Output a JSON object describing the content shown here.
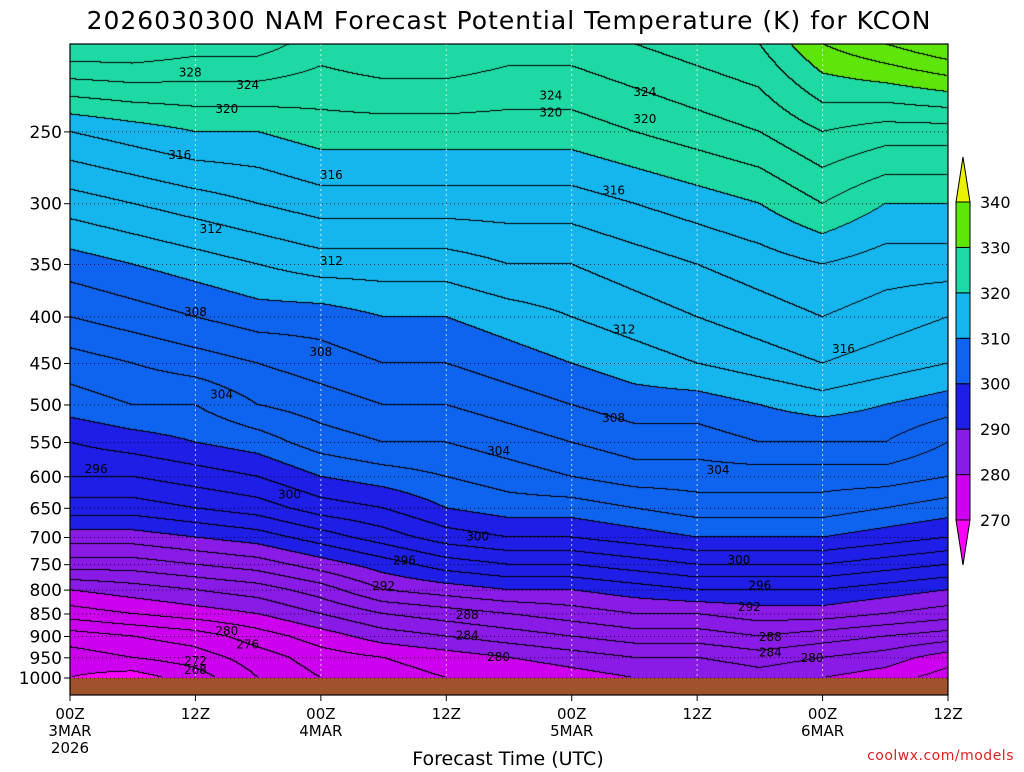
{
  "chart_data": {
    "type": "heatmap",
    "title": "2026030300 NAM Forecast Potential Temperature (K) for KCON",
    "xlabel": "Forecast Time (UTC)",
    "ylabel": "",
    "watermark": "coolwx.com/models",
    "units": "K",
    "x_hours": [
      0,
      12,
      24,
      36,
      48,
      60,
      72,
      84
    ],
    "x_ticks": [
      {
        "hour": 0,
        "l1": "00Z",
        "l2": "3MAR",
        "l3": "2026"
      },
      {
        "hour": 12,
        "l1": "12Z",
        "l2": "",
        "l3": ""
      },
      {
        "hour": 24,
        "l1": "00Z",
        "l2": "4MAR",
        "l3": ""
      },
      {
        "hour": 36,
        "l1": "12Z",
        "l2": "",
        "l3": ""
      },
      {
        "hour": 48,
        "l1": "00Z",
        "l2": "5MAR",
        "l3": ""
      },
      {
        "hour": 60,
        "l1": "12Z",
        "l2": "",
        "l3": ""
      },
      {
        "hour": 72,
        "l1": "00Z",
        "l2": "6MAR",
        "l3": ""
      },
      {
        "hour": 84,
        "l1": "12Z",
        "l2": "",
        "l3": ""
      }
    ],
    "xlim": [
      0,
      84
    ],
    "y_ticks": [
      250,
      300,
      350,
      400,
      450,
      500,
      550,
      600,
      650,
      700,
      750,
      800,
      850,
      900,
      950,
      1000
    ],
    "ylim": [
      200,
      1000
    ],
    "ground_pressure": 1000,
    "contour_interval": 2,
    "color_levels": [
      270,
      280,
      290,
      300,
      310,
      320,
      330,
      340
    ],
    "colorbar_colors": [
      "#ff00ff",
      "#cc00ee",
      "#8a1ae6",
      "#1e1ee6",
      "#0f64ef",
      "#15b6ee",
      "#1ed9a3",
      "#5ee60a",
      "#eaf200"
    ],
    "ground_color": "#a0522d",
    "profile_pressures": [
      1000,
      950,
      900,
      850,
      800,
      750,
      700,
      650,
      600,
      550,
      500,
      450,
      400,
      350,
      300,
      250,
      200
    ],
    "profiles": [
      {
        "hour": 0,
        "theta": [
          270,
          271,
          273,
          277,
          280,
          285,
          289,
          293,
          296,
          298,
          301,
          303,
          306,
          309,
          313,
          318,
          328
        ]
      },
      {
        "hour": 6,
        "theta": [
          269,
          272,
          274,
          278,
          281,
          285,
          289,
          293,
          296,
          299,
          302,
          304,
          307,
          310,
          314,
          319,
          328
        ]
      },
      {
        "hour": 12,
        "theta": [
          271,
          273,
          275,
          279,
          282,
          286,
          290,
          294,
          297,
          300,
          302,
          305,
          308,
          311,
          315,
          320,
          327
        ]
      },
      {
        "hour": 18,
        "theta": [
          274,
          275,
          277,
          280,
          283,
          287,
          291,
          295,
          298,
          301,
          304,
          306,
          309,
          312,
          316,
          320,
          327
        ]
      },
      {
        "hour": 24,
        "theta": [
          276,
          277,
          279,
          282,
          285,
          289,
          293,
          297,
          300,
          303,
          305,
          307,
          309,
          313,
          317,
          321,
          325
        ]
      },
      {
        "hour": 30,
        "theta": [
          277,
          278,
          281,
          284,
          288,
          291,
          295,
          298,
          301,
          304,
          306,
          308,
          310,
          313,
          317,
          321,
          326
        ]
      },
      {
        "hour": 36,
        "theta": [
          278,
          279,
          282,
          285,
          289,
          293,
          297,
          300,
          302,
          304,
          306,
          308,
          310,
          313,
          317,
          321,
          326
        ]
      },
      {
        "hour": 42,
        "theta": [
          278,
          280,
          283,
          286,
          290,
          294,
          298,
          301,
          303,
          305,
          307,
          309,
          311,
          314,
          317,
          321,
          325
        ]
      },
      {
        "hour": 48,
        "theta": [
          279,
          281,
          284,
          287,
          290,
          294,
          298,
          301,
          304,
          306,
          308,
          310,
          312,
          314,
          317,
          321,
          325
        ]
      },
      {
        "hour": 54,
        "theta": [
          280,
          282,
          285,
          288,
          291,
          295,
          299,
          302,
          305,
          307,
          309,
          311,
          313,
          315,
          318,
          322,
          326
        ]
      },
      {
        "hour": 60,
        "theta": [
          280,
          282,
          285,
          288,
          292,
          296,
          300,
          303,
          305,
          307,
          309,
          312,
          314,
          316,
          319,
          323,
          327
        ]
      },
      {
        "hour": 66,
        "theta": [
          281,
          283,
          286,
          289,
          292,
          296,
          300,
          303,
          305,
          308,
          310,
          313,
          315,
          317,
          320,
          324,
          328
        ]
      },
      {
        "hour": 72,
        "theta": [
          280,
          282,
          285,
          289,
          292,
          296,
          300,
          303,
          305,
          308,
          311,
          314,
          316,
          318,
          322,
          326,
          332
        ]
      },
      {
        "hour": 78,
        "theta": [
          279,
          281,
          284,
          288,
          291,
          295,
          299,
          302,
          305,
          308,
          310,
          313,
          315,
          317,
          320,
          325,
          334
        ]
      },
      {
        "hour": 84,
        "theta": [
          277,
          279,
          283,
          287,
          290,
          294,
          298,
          301,
          304,
          306,
          309,
          312,
          314,
          317,
          320,
          325,
          336
        ]
      }
    ],
    "contour_labels": [
      {
        "text": "328",
        "hour": 11.5,
        "p": 215
      },
      {
        "text": "324",
        "hour": 17,
        "p": 222
      },
      {
        "text": "320",
        "hour": 15,
        "p": 236
      },
      {
        "text": "316",
        "hour": 10.5,
        "p": 265
      },
      {
        "text": "312",
        "hour": 13.5,
        "p": 320
      },
      {
        "text": "308",
        "hour": 12,
        "p": 395
      },
      {
        "text": "304",
        "hour": 14.5,
        "p": 487
      },
      {
        "text": "296",
        "hour": 2.5,
        "p": 588
      },
      {
        "text": "280",
        "hour": 15,
        "p": 888
      },
      {
        "text": "276",
        "hour": 17,
        "p": 918
      },
      {
        "text": "272",
        "hour": 12,
        "p": 958
      },
      {
        "text": "268",
        "hour": 12,
        "p": 980
      },
      {
        "text": "324",
        "hour": 46,
        "p": 228
      },
      {
        "text": "320",
        "hour": 46,
        "p": 238
      },
      {
        "text": "316",
        "hour": 25,
        "p": 279
      },
      {
        "text": "312",
        "hour": 25,
        "p": 347
      },
      {
        "text": "308",
        "hour": 24,
        "p": 437
      },
      {
        "text": "300",
        "hour": 21,
        "p": 628
      },
      {
        "text": "296",
        "hour": 32,
        "p": 742
      },
      {
        "text": "292",
        "hour": 30,
        "p": 792
      },
      {
        "text": "288",
        "hour": 38,
        "p": 852
      },
      {
        "text": "284",
        "hour": 38,
        "p": 898
      },
      {
        "text": "280",
        "hour": 41,
        "p": 948
      },
      {
        "text": "300",
        "hour": 39,
        "p": 698
      },
      {
        "text": "304",
        "hour": 41,
        "p": 562
      },
      {
        "text": "308",
        "hour": 52,
        "p": 517
      },
      {
        "text": "312",
        "hour": 53,
        "p": 413
      },
      {
        "text": "316",
        "hour": 52,
        "p": 290
      },
      {
        "text": "320",
        "hour": 55,
        "p": 242
      },
      {
        "text": "324",
        "hour": 55,
        "p": 226
      },
      {
        "text": "304",
        "hour": 62,
        "p": 590
      },
      {
        "text": "300",
        "hour": 64,
        "p": 741
      },
      {
        "text": "296",
        "hour": 66,
        "p": 791
      },
      {
        "text": "292",
        "hour": 65,
        "p": 835
      },
      {
        "text": "288",
        "hour": 67,
        "p": 901
      },
      {
        "text": "284",
        "hour": 67,
        "p": 937
      },
      {
        "text": "280",
        "hour": 71,
        "p": 950
      },
      {
        "text": "316",
        "hour": 74,
        "p": 434
      }
    ]
  }
}
